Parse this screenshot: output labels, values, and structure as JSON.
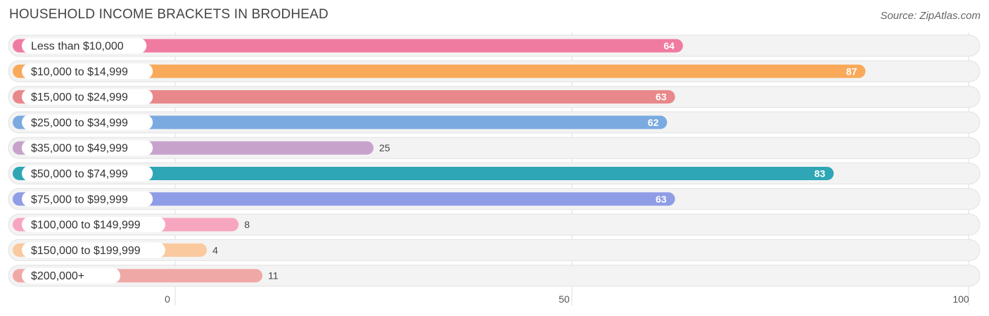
{
  "chart_data": {
    "type": "bar",
    "orientation": "horizontal",
    "title": "HOUSEHOLD INCOME BRACKETS IN BRODHEAD",
    "source": "Source: ZipAtlas.com",
    "xlim": [
      0,
      100
    ],
    "xticks": [
      0,
      50,
      100
    ],
    "xlabel": "",
    "ylabel": "",
    "grid": true,
    "categories": [
      "Less than $10,000",
      "$10,000 to $14,999",
      "$15,000 to $24,999",
      "$25,000 to $34,999",
      "$35,000 to $49,999",
      "$50,000 to $74,999",
      "$75,000 to $99,999",
      "$100,000 to $149,999",
      "$150,000 to $199,999",
      "$200,000+"
    ],
    "values": [
      64,
      87,
      63,
      62,
      25,
      83,
      63,
      8,
      4,
      11
    ],
    "colors": [
      "#f07ba0",
      "#f9a95a",
      "#e8888a",
      "#7aaae0",
      "#c7a3cc",
      "#2ea6b5",
      "#8f9de6",
      "#f7a6c0",
      "#fac99e",
      "#f0a8a6"
    ]
  }
}
